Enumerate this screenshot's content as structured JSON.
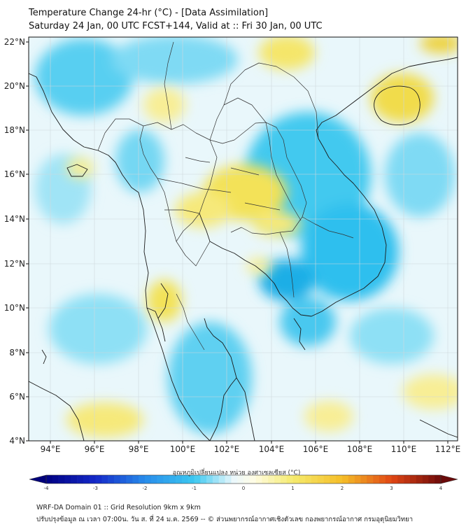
{
  "title": {
    "line1": "Temperature Change 24-hr (°C) - [Data Assimilation]",
    "line2": "Saturday 24 Jan, 00 UTC FCST+144, Valid at :: Fri 30 Jan, 00 UTC"
  },
  "map": {
    "lat_labels": [
      "22°N",
      "20°N",
      "18°N",
      "16°N",
      "14°N",
      "12°N",
      "10°N",
      "8°N",
      "6°N",
      "4°N"
    ],
    "lon_labels": [
      "94°E",
      "96°E",
      "98°E",
      "100°E",
      "102°E",
      "104°E",
      "106°E",
      "108°E",
      "110°E",
      "112°E"
    ],
    "lat_range": [
      4,
      22.2
    ],
    "lon_range": [
      93,
      112.4
    ]
  },
  "colorbar": {
    "title": "อุณหภูมิเปลี่ยนแปลง หน่วย องศาเซลเซียส (°C)",
    "range": [
      -4,
      4
    ],
    "tick_values": [
      -4,
      -3,
      -2,
      -1,
      0,
      1,
      2,
      3,
      4
    ],
    "tick_labels": [
      "-4",
      "-3",
      "-2",
      "-1",
      "0",
      "1",
      "2",
      "3",
      "4"
    ]
  },
  "footer": {
    "line1": "WRF-DA Domain 01 :: Grid Resolution 9km x 9km",
    "line2": "ปรับปรุงข้อมูล ณ เวลา 07:00น. วัน ส. ที่ 24 ม.ค. 2569 -- © ส่วนพยากรณ์อากาศเชิงตัวเลข กองพยากรณ์อากาศ กรมอุตุนิยมวิทยา"
  },
  "colors": {
    "cool": "#35c7ee",
    "warm": "#f5e66a"
  }
}
